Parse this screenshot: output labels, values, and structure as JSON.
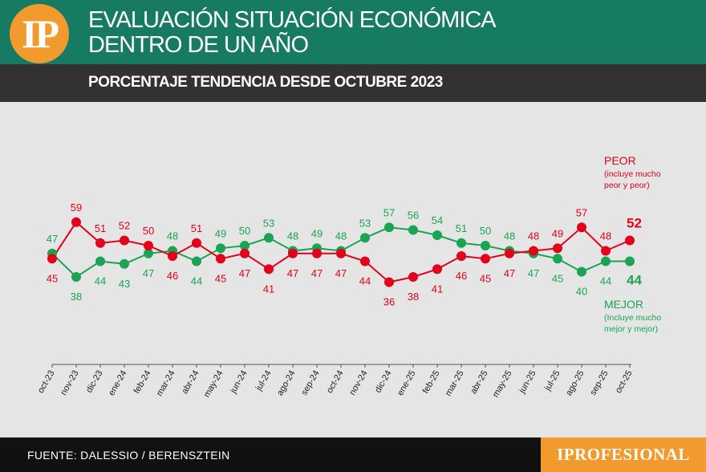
{
  "header": {
    "logo": "IP",
    "title_line1": "EVALUACIÓN SITUACIÓN ECONÓMICA",
    "title_line2": "DENTRO DE UN AÑO",
    "subtitle": "PORCENTAJE TENDENCIA DESDE OCTUBRE 2023"
  },
  "footer": {
    "source": "FUENTE: DALESSIO / BERENSZTEIN",
    "brand": "IPROFESIONAL"
  },
  "colors": {
    "peor": "#e2001a",
    "mejor": "#1aa454",
    "header_bg": "#177a62",
    "accent": "#f39a2e"
  },
  "chart_data": {
    "type": "line",
    "title": "PORCENTAJE TENDENCIA DESDE OCTUBRE 2023",
    "categories": [
      "oct-23",
      "nov-23",
      "dic-23",
      "ene-24",
      "feb-24",
      "mar-24",
      "abr-24",
      "may-24",
      "jun-24",
      "jul-24",
      "ago-24",
      "sep-24",
      "oct-24",
      "nov-24",
      "dic-24",
      "ene-25",
      "feb-25",
      "mar-25",
      "abr-25",
      "may-25",
      "jun-25",
      "jul-25",
      "ago-25",
      "sep-25",
      "oct-25"
    ],
    "series": [
      {
        "name": "PEOR",
        "note": "(incluye mucho peor y peor)",
        "color": "#e2001a",
        "values": [
          45,
          59,
          51,
          52,
          50,
          46,
          51,
          45,
          47,
          41,
          47,
          47,
          47,
          44,
          36,
          38,
          41,
          46,
          45,
          47,
          48,
          49,
          57,
          48,
          52
        ]
      },
      {
        "name": "MEJOR",
        "note": "(Incluye mucho mejor y mejor)",
        "color": "#1aa454",
        "values": [
          47,
          38,
          44,
          43,
          47,
          48,
          44,
          49,
          50,
          53,
          48,
          49,
          48,
          53,
          57,
          56,
          54,
          51,
          50,
          48,
          47,
          45,
          40,
          44,
          44
        ]
      }
    ],
    "xlabel": "",
    "ylabel": "",
    "ylim": [
      30,
      65
    ]
  }
}
